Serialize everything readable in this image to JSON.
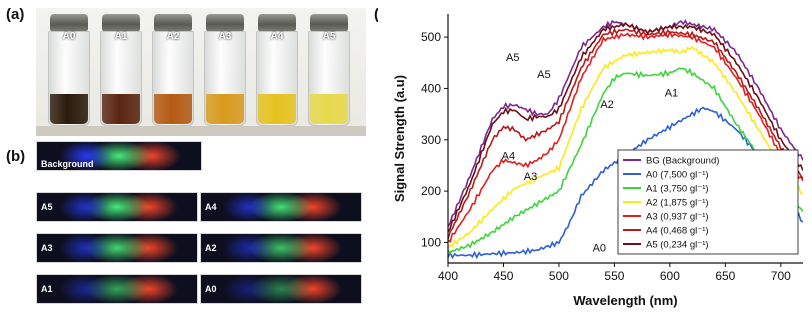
{
  "panels": {
    "a": "(a)",
    "b": "(b)",
    "c": "(c)"
  },
  "vials": [
    {
      "label": "A0",
      "color": "#2a1a0c"
    },
    {
      "label": "A1",
      "color": "#5a2410"
    },
    {
      "label": "A2",
      "color": "#b45a14"
    },
    {
      "label": "A3",
      "color": "#d99a1c"
    },
    {
      "label": "A4",
      "color": "#e6c21e"
    },
    {
      "label": "A5",
      "color": "#e8d84a"
    }
  ],
  "spectra": [
    {
      "label": "Background",
      "intensity": 1.0
    },
    {
      "label": "A5",
      "intensity": 1.0
    },
    {
      "label": "A4",
      "intensity": 0.95
    },
    {
      "label": "A3",
      "intensity": 0.9
    },
    {
      "label": "A2",
      "intensity": 0.8
    },
    {
      "label": "A1",
      "intensity": 0.65
    },
    {
      "label": "A0",
      "intensity": 0.5
    }
  ],
  "chart_data": {
    "type": "line",
    "xlabel": "Wavelength (nm)",
    "ylabel": "Signal Strength (a.u)",
    "xlim": [
      400,
      720
    ],
    "ylim": [
      60,
      545
    ],
    "xticks": [
      400,
      450,
      500,
      550,
      600,
      650,
      700
    ],
    "yticks": [
      100,
      200,
      300,
      400,
      500
    ],
    "legend_position": "right",
    "series": [
      {
        "name": "BG (Background)",
        "color": "#7a2a8c",
        "x": [
          400,
          420,
          440,
          450,
          460,
          480,
          490,
          500,
          520,
          540,
          550,
          560,
          580,
          600,
          610,
          620,
          640,
          660,
          680,
          700,
          720
        ],
        "y": [
          130,
          230,
          340,
          365,
          368,
          350,
          350,
          380,
          480,
          520,
          530,
          525,
          510,
          520,
          530,
          525,
          515,
          470,
          400,
          320,
          260
        ]
      },
      {
        "name": "A0 (7,500 gl⁻¹)",
        "color": "#2f5fd6",
        "x": [
          400,
          420,
          440,
          460,
          480,
          500,
          510,
          520,
          540,
          560,
          580,
          600,
          620,
          630,
          640,
          660,
          680,
          700,
          720
        ],
        "y": [
          75,
          75,
          78,
          80,
          85,
          100,
          140,
          190,
          240,
          270,
          300,
          325,
          350,
          362,
          355,
          320,
          270,
          200,
          140
        ]
      },
      {
        "name": "A1 (3,750 gl⁻¹)",
        "color": "#3bd43b",
        "x": [
          400,
          420,
          440,
          460,
          480,
          500,
          520,
          540,
          550,
          560,
          580,
          600,
          610,
          620,
          640,
          660,
          680,
          700,
          720
        ],
        "y": [
          80,
          95,
          120,
          150,
          175,
          200,
          290,
          390,
          420,
          430,
          425,
          430,
          440,
          430,
          400,
          330,
          270,
          210,
          160
        ]
      },
      {
        "name": "A2 (1,875 gl⁻¹)",
        "color": "#ffe81a",
        "x": [
          400,
          420,
          440,
          460,
          480,
          500,
          520,
          540,
          560,
          580,
          600,
          610,
          620,
          640,
          660,
          680,
          700,
          720
        ],
        "y": [
          90,
          120,
          165,
          205,
          225,
          245,
          360,
          440,
          465,
          470,
          475,
          470,
          480,
          450,
          390,
          320,
          250,
          195
        ]
      },
      {
        "name": "A3 (0,937 gl⁻¹)",
        "color": "#e02020",
        "x": [
          400,
          420,
          440,
          450,
          460,
          470,
          480,
          490,
          500,
          520,
          540,
          560,
          580,
          600,
          620,
          640,
          660,
          680,
          700,
          720
        ],
        "y": [
          100,
          165,
          240,
          260,
          255,
          250,
          260,
          275,
          300,
          420,
          495,
          505,
          500,
          505,
          500,
          480,
          420,
          350,
          270,
          220
        ]
      },
      {
        "name": "A4 (0,468 gl⁻¹)",
        "color": "#b81a1a",
        "x": [
          400,
          420,
          440,
          450,
          460,
          470,
          480,
          490,
          500,
          520,
          540,
          560,
          580,
          600,
          620,
          640,
          660,
          680,
          700,
          720
        ],
        "y": [
          110,
          200,
          300,
          325,
          320,
          300,
          310,
          320,
          335,
          440,
          505,
          515,
          505,
          510,
          505,
          490,
          430,
          360,
          285,
          225
        ]
      },
      {
        "name": "A5 (0,234 gl⁻¹)",
        "color": "#6a0f18",
        "x": [
          400,
          420,
          440,
          450,
          460,
          470,
          480,
          490,
          500,
          520,
          540,
          560,
          580,
          600,
          620,
          640,
          660,
          680,
          700,
          720
        ],
        "y": [
          120,
          215,
          330,
          355,
          358,
          340,
          345,
          345,
          360,
          460,
          515,
          525,
          510,
          520,
          520,
          505,
          450,
          380,
          300,
          240
        ]
      }
    ],
    "annotations": [
      {
        "text": "A5",
        "x": 462,
        "y": 453
      },
      {
        "text": "A5",
        "x": 490,
        "y": 420
      },
      {
        "text": "A4",
        "x": 458,
        "y": 262
      },
      {
        "text": "A3",
        "x": 478,
        "y": 222
      },
      {
        "text": "A2",
        "x": 547,
        "y": 362
      },
      {
        "text": "A1",
        "x": 605,
        "y": 384
      },
      {
        "text": "A0",
        "x": 540,
        "y": 82
      }
    ]
  }
}
